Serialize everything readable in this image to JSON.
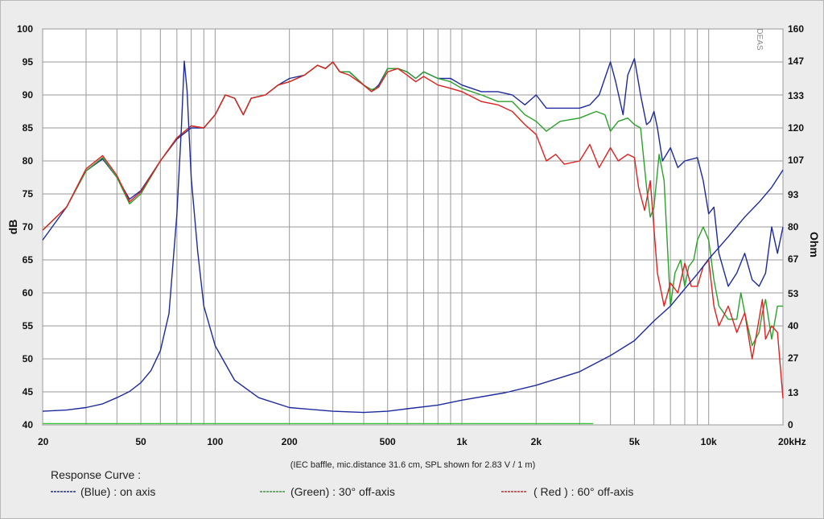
{
  "chart_data": {
    "type": "line",
    "xscale": "log",
    "xlim": [
      20,
      20000
    ],
    "ylim": [
      40,
      100
    ],
    "y2lim": [
      0,
      160
    ],
    "ylabel": "dB",
    "y2label": "Ohm",
    "grid": true,
    "x_ticks": [
      {
        "v": 20,
        "label": "20"
      },
      {
        "v": 50,
        "label": "50"
      },
      {
        "v": 100,
        "label": "100"
      },
      {
        "v": 200,
        "label": "200"
      },
      {
        "v": 500,
        "label": "500"
      },
      {
        "v": 1000,
        "label": "1k"
      },
      {
        "v": 2000,
        "label": "2k"
      },
      {
        "v": 5000,
        "label": "5k"
      },
      {
        "v": 10000,
        "label": "10k"
      },
      {
        "v": 20000,
        "label": "20kHz"
      }
    ],
    "y_ticks": [
      "40",
      "45",
      "50",
      "55",
      "60",
      "65",
      "70",
      "75",
      "80",
      "85",
      "90",
      "95",
      "100"
    ],
    "y2_ticks": [
      {
        "v": 0,
        "label": "0"
      },
      {
        "v": 13,
        "label": "13"
      },
      {
        "v": 27,
        "label": "27"
      },
      {
        "v": 40,
        "label": "40"
      },
      {
        "v": 53,
        "label": "53"
      },
      {
        "v": 67,
        "label": "67"
      },
      {
        "v": 80,
        "label": "80"
      },
      {
        "v": 93,
        "label": "93"
      },
      {
        "v": 107,
        "label": "107"
      },
      {
        "v": 120,
        "label": "120"
      },
      {
        "v": 133,
        "label": "133"
      },
      {
        "v": 147,
        "label": "147"
      },
      {
        "v": 160,
        "label": "160"
      }
    ],
    "caption": "(IEC baffle, mic.distance 31.6 cm, SPL shown for 2.83 V / 1 m)",
    "brand": "DEAS",
    "legend_title": "Response Curve :",
    "legend": [
      {
        "label": "(Blue)  : on axis",
        "color": "#1c2a9c"
      },
      {
        "label": "(Green) : 30° off-axis",
        "color": "#2aa12a"
      },
      {
        "label": "( Red ) : 60° off-axis",
        "color": "#e02020"
      }
    ],
    "series": [
      {
        "axis": "left",
        "color": "#1c2a9c",
        "points": [
          [
            20,
            68
          ],
          [
            25,
            73
          ],
          [
            30,
            78.5
          ],
          [
            35,
            80.3
          ],
          [
            40,
            77.5
          ],
          [
            45,
            74.2
          ],
          [
            50,
            75.5
          ],
          [
            60,
            80
          ],
          [
            70,
            83.3
          ],
          [
            80,
            85
          ],
          [
            90,
            85
          ],
          [
            100,
            87
          ],
          [
            110,
            90
          ],
          [
            120,
            89.5
          ],
          [
            130,
            87
          ],
          [
            140,
            89.5
          ],
          [
            160,
            90
          ],
          [
            180,
            91.5
          ],
          [
            200,
            92.5
          ],
          [
            230,
            93
          ],
          [
            260,
            94.5
          ],
          [
            280,
            94
          ],
          [
            300,
            95
          ],
          [
            320,
            93.5
          ],
          [
            350,
            93.5
          ],
          [
            400,
            91.5
          ],
          [
            430,
            90.5
          ],
          [
            460,
            91.5
          ],
          [
            500,
            94
          ],
          [
            550,
            94
          ],
          [
            600,
            93.5
          ],
          [
            650,
            92.5
          ],
          [
            700,
            93.5
          ],
          [
            800,
            92.5
          ],
          [
            900,
            92.5
          ],
          [
            1000,
            91.5
          ],
          [
            1200,
            90.5
          ],
          [
            1400,
            90.5
          ],
          [
            1600,
            90
          ],
          [
            1800,
            88.5
          ],
          [
            2000,
            90
          ],
          [
            2200,
            88
          ],
          [
            2500,
            88
          ],
          [
            3000,
            88
          ],
          [
            3300,
            88.5
          ],
          [
            3600,
            90
          ],
          [
            4000,
            95
          ],
          [
            4200,
            92
          ],
          [
            4500,
            87
          ],
          [
            4700,
            93
          ],
          [
            5000,
            95.5
          ],
          [
            5300,
            90
          ],
          [
            5600,
            85.5
          ],
          [
            5800,
            86
          ],
          [
            6000,
            87.5
          ],
          [
            6200,
            85
          ],
          [
            6500,
            80
          ],
          [
            7000,
            82
          ],
          [
            7500,
            79
          ],
          [
            8000,
            80
          ],
          [
            9000,
            80.5
          ],
          [
            9500,
            77
          ],
          [
            10000,
            72
          ],
          [
            10500,
            73
          ],
          [
            11000,
            66
          ],
          [
            12000,
            61
          ],
          [
            13000,
            63
          ],
          [
            14000,
            66
          ],
          [
            15000,
            62
          ],
          [
            16000,
            61
          ],
          [
            17000,
            63
          ],
          [
            18000,
            70
          ],
          [
            19000,
            66
          ],
          [
            20000,
            70
          ]
        ]
      },
      {
        "axis": "left",
        "color": "#2aa12a",
        "points": [
          [
            20,
            69.5
          ],
          [
            25,
            73
          ],
          [
            30,
            78.5
          ],
          [
            35,
            80.5
          ],
          [
            40,
            77.5
          ],
          [
            45,
            73.5
          ],
          [
            50,
            75
          ],
          [
            60,
            80
          ],
          [
            70,
            83.5
          ],
          [
            80,
            85.3
          ],
          [
            90,
            85
          ],
          [
            100,
            87
          ],
          [
            110,
            90
          ],
          [
            120,
            89.5
          ],
          [
            130,
            87
          ],
          [
            140,
            89.5
          ],
          [
            160,
            90
          ],
          [
            180,
            91.5
          ],
          [
            200,
            92
          ],
          [
            230,
            93
          ],
          [
            260,
            94.5
          ],
          [
            280,
            94
          ],
          [
            300,
            95
          ],
          [
            320,
            93.5
          ],
          [
            350,
            93.5
          ],
          [
            400,
            91.5
          ],
          [
            430,
            90.8
          ],
          [
            460,
            91.2
          ],
          [
            500,
            94
          ],
          [
            550,
            94
          ],
          [
            600,
            93.5
          ],
          [
            650,
            92.5
          ],
          [
            700,
            93.5
          ],
          [
            800,
            92.5
          ],
          [
            900,
            92
          ],
          [
            1000,
            91
          ],
          [
            1200,
            90
          ],
          [
            1400,
            89
          ],
          [
            1600,
            89
          ],
          [
            1800,
            87
          ],
          [
            2000,
            86
          ],
          [
            2200,
            84.5
          ],
          [
            2500,
            86
          ],
          [
            3000,
            86.5
          ],
          [
            3500,
            87.5
          ],
          [
            3800,
            87
          ],
          [
            4000,
            84.5
          ],
          [
            4300,
            86
          ],
          [
            4700,
            86.5
          ],
          [
            5000,
            85.5
          ],
          [
            5300,
            85
          ],
          [
            5600,
            76
          ],
          [
            5800,
            71.5
          ],
          [
            6000,
            73
          ],
          [
            6300,
            81
          ],
          [
            6600,
            77
          ],
          [
            7000,
            58
          ],
          [
            7300,
            63
          ],
          [
            7700,
            65
          ],
          [
            8000,
            61
          ],
          [
            8300,
            64
          ],
          [
            8700,
            65
          ],
          [
            9000,
            68
          ],
          [
            9500,
            70
          ],
          [
            10000,
            68
          ],
          [
            10500,
            62
          ],
          [
            11000,
            58
          ],
          [
            12000,
            56
          ],
          [
            13000,
            56
          ],
          [
            13500,
            60
          ],
          [
            14000,
            57
          ],
          [
            15000,
            52
          ],
          [
            16000,
            54
          ],
          [
            16500,
            57
          ],
          [
            17000,
            59
          ],
          [
            18000,
            53
          ],
          [
            19000,
            58
          ],
          [
            20000,
            58
          ]
        ]
      },
      {
        "axis": "left",
        "color": "#e02020",
        "points": [
          [
            20,
            69.5
          ],
          [
            25,
            73
          ],
          [
            30,
            78.8
          ],
          [
            35,
            80.8
          ],
          [
            40,
            77.8
          ],
          [
            45,
            73.8
          ],
          [
            50,
            75.3
          ],
          [
            60,
            80
          ],
          [
            70,
            83.5
          ],
          [
            80,
            85.3
          ],
          [
            90,
            85
          ],
          [
            100,
            87
          ],
          [
            110,
            90
          ],
          [
            120,
            89.5
          ],
          [
            130,
            87
          ],
          [
            140,
            89.5
          ],
          [
            160,
            90
          ],
          [
            180,
            91.5
          ],
          [
            200,
            92
          ],
          [
            230,
            93
          ],
          [
            260,
            94.5
          ],
          [
            280,
            94
          ],
          [
            300,
            95
          ],
          [
            320,
            93.5
          ],
          [
            350,
            93
          ],
          [
            400,
            91.5
          ],
          [
            430,
            90.5
          ],
          [
            460,
            91.2
          ],
          [
            500,
            93.5
          ],
          [
            550,
            94
          ],
          [
            600,
            93
          ],
          [
            650,
            92
          ],
          [
            700,
            92.8
          ],
          [
            800,
            91.5
          ],
          [
            900,
            91
          ],
          [
            1000,
            90.5
          ],
          [
            1200,
            89
          ],
          [
            1400,
            88.5
          ],
          [
            1600,
            87.5
          ],
          [
            1800,
            85.5
          ],
          [
            2000,
            84
          ],
          [
            2200,
            80
          ],
          [
            2400,
            81
          ],
          [
            2600,
            79.5
          ],
          [
            3000,
            80
          ],
          [
            3300,
            82.5
          ],
          [
            3600,
            79
          ],
          [
            4000,
            82
          ],
          [
            4300,
            80
          ],
          [
            4700,
            81
          ],
          [
            5000,
            80.5
          ],
          [
            5200,
            76
          ],
          [
            5500,
            72.5
          ],
          [
            5800,
            77
          ],
          [
            6200,
            63
          ],
          [
            6600,
            58
          ],
          [
            7000,
            61.5
          ],
          [
            7500,
            60
          ],
          [
            8000,
            64.5
          ],
          [
            8500,
            61
          ],
          [
            9000,
            61
          ],
          [
            9500,
            64
          ],
          [
            10000,
            65
          ],
          [
            10500,
            58
          ],
          [
            11000,
            55
          ],
          [
            12000,
            58
          ],
          [
            13000,
            54
          ],
          [
            14000,
            57
          ],
          [
            15000,
            50
          ],
          [
            16000,
            56
          ],
          [
            16500,
            59
          ],
          [
            17000,
            53
          ],
          [
            18000,
            55
          ],
          [
            19000,
            54
          ],
          [
            20000,
            44
          ]
        ]
      },
      {
        "axis": "right",
        "color": "#1c2a9c",
        "points": [
          [
            20,
            5.5
          ],
          [
            25,
            6
          ],
          [
            30,
            7
          ],
          [
            35,
            8.5
          ],
          [
            40,
            11
          ],
          [
            45,
            13.5
          ],
          [
            50,
            17
          ],
          [
            55,
            22
          ],
          [
            60,
            30
          ],
          [
            65,
            45
          ],
          [
            70,
            85
          ],
          [
            73,
            120
          ],
          [
            75,
            147
          ],
          [
            77,
            135
          ],
          [
            80,
            100
          ],
          [
            85,
            70
          ],
          [
            90,
            48
          ],
          [
            100,
            32
          ],
          [
            120,
            18
          ],
          [
            150,
            11
          ],
          [
            200,
            7
          ],
          [
            300,
            5.5
          ],
          [
            400,
            5
          ],
          [
            500,
            5.5
          ],
          [
            600,
            6.5
          ],
          [
            800,
            8
          ],
          [
            1000,
            10
          ],
          [
            1500,
            13
          ],
          [
            2000,
            16
          ],
          [
            3000,
            21.5
          ],
          [
            4000,
            28
          ],
          [
            5000,
            34
          ],
          [
            6000,
            42
          ],
          [
            7000,
            48
          ],
          [
            8000,
            55
          ],
          [
            9000,
            61
          ],
          [
            10000,
            67
          ],
          [
            12000,
            76
          ],
          [
            14000,
            84
          ],
          [
            16000,
            90
          ],
          [
            18000,
            96
          ],
          [
            20000,
            103
          ]
        ]
      },
      {
        "axis": "left",
        "color": "#3ec43e",
        "points": [
          [
            20,
            40.2
          ],
          [
            3400,
            40.2
          ]
        ]
      }
    ]
  }
}
